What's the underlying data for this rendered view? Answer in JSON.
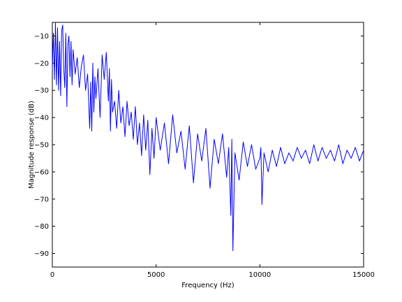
{
  "chart_data": {
    "type": "line",
    "title": "",
    "xlabel": "Frequency (Hz)",
    "ylabel": "Magnitude response (dB)",
    "xlim": [
      0,
      15000
    ],
    "ylim": [
      -95,
      -5
    ],
    "x_ticks": [
      0,
      5000,
      10000,
      15000
    ],
    "x_tick_labels": [
      "0",
      "5000",
      "10000",
      "15000"
    ],
    "y_ticks": [
      -90,
      -80,
      -70,
      -60,
      -50,
      -40,
      -30,
      -20,
      -10
    ],
    "y_tick_labels": [
      "−90",
      "−80",
      "−70",
      "−60",
      "−50",
      "−40",
      "−30",
      "−20",
      "−10"
    ],
    "grid": false,
    "line_color": "#0000ff",
    "series": [
      {
        "x": [
          0,
          50,
          100,
          150,
          200,
          250,
          300,
          350,
          400,
          450,
          500,
          550,
          600,
          650,
          700,
          750,
          800,
          850,
          900,
          950,
          1000,
          1100,
          1200,
          1300,
          1400,
          1500,
          1600,
          1700,
          1800,
          1850,
          1900,
          1950,
          2000,
          2050,
          2100,
          2200,
          2300,
          2400,
          2500,
          2600,
          2700,
          2750,
          2800,
          2850,
          2900,
          3000,
          3100,
          3200,
          3300,
          3400,
          3500,
          3600,
          3700,
          3800,
          3900,
          4000,
          4100,
          4200,
          4300,
          4400,
          4500,
          4600,
          4700,
          4800,
          4900,
          5000,
          5200,
          5400,
          5600,
          5800,
          6000,
          6200,
          6400,
          6600,
          6800,
          7000,
          7200,
          7400,
          7600,
          7800,
          8000,
          8200,
          8400,
          8500,
          8600,
          8650,
          8700,
          8800,
          9000,
          9200,
          9400,
          9600,
          9800,
          10000,
          10050,
          10100,
          10200,
          10400,
          10600,
          10800,
          11000,
          11200,
          11400,
          11600,
          11800,
          12000,
          12200,
          12400,
          12600,
          12800,
          13000,
          13200,
          13400,
          13600,
          13800,
          14000,
          14200,
          14400,
          14600,
          14800,
          15000
        ],
        "y": [
          -22,
          -9,
          -26,
          -5,
          -28,
          -7,
          -30,
          -12,
          -32,
          -8,
          -6,
          -22,
          -29,
          -9,
          -36,
          -13,
          -10,
          -25,
          -12,
          -28,
          -15,
          -24,
          -18,
          -29,
          -21,
          -17,
          -30,
          -24,
          -44,
          -27,
          -45,
          -20,
          -38,
          -25,
          -33,
          -22,
          -40,
          -17,
          -26,
          -16,
          -34,
          -22,
          -45,
          -26,
          -38,
          -34,
          -44,
          -30,
          -42,
          -36,
          -47,
          -34,
          -43,
          -38,
          -48,
          -36,
          -50,
          -42,
          -54,
          -39,
          -52,
          -41,
          -61,
          -44,
          -55,
          -40,
          -52,
          -42,
          -57,
          -39,
          -53,
          -45,
          -59,
          -43,
          -64,
          -46,
          -56,
          -44,
          -66,
          -48,
          -57,
          -46,
          -62,
          -51,
          -76,
          -48,
          -89,
          -53,
          -63,
          -49,
          -58,
          -50,
          -59,
          -55,
          -51,
          -72,
          -53,
          -60,
          -52,
          -58,
          -51,
          -57,
          -53,
          -56,
          -51,
          -55,
          -52,
          -57,
          -50,
          -56,
          -51,
          -55,
          -52,
          -56,
          -50,
          -57,
          -52,
          -55,
          -51,
          -56,
          -52
        ]
      }
    ]
  }
}
